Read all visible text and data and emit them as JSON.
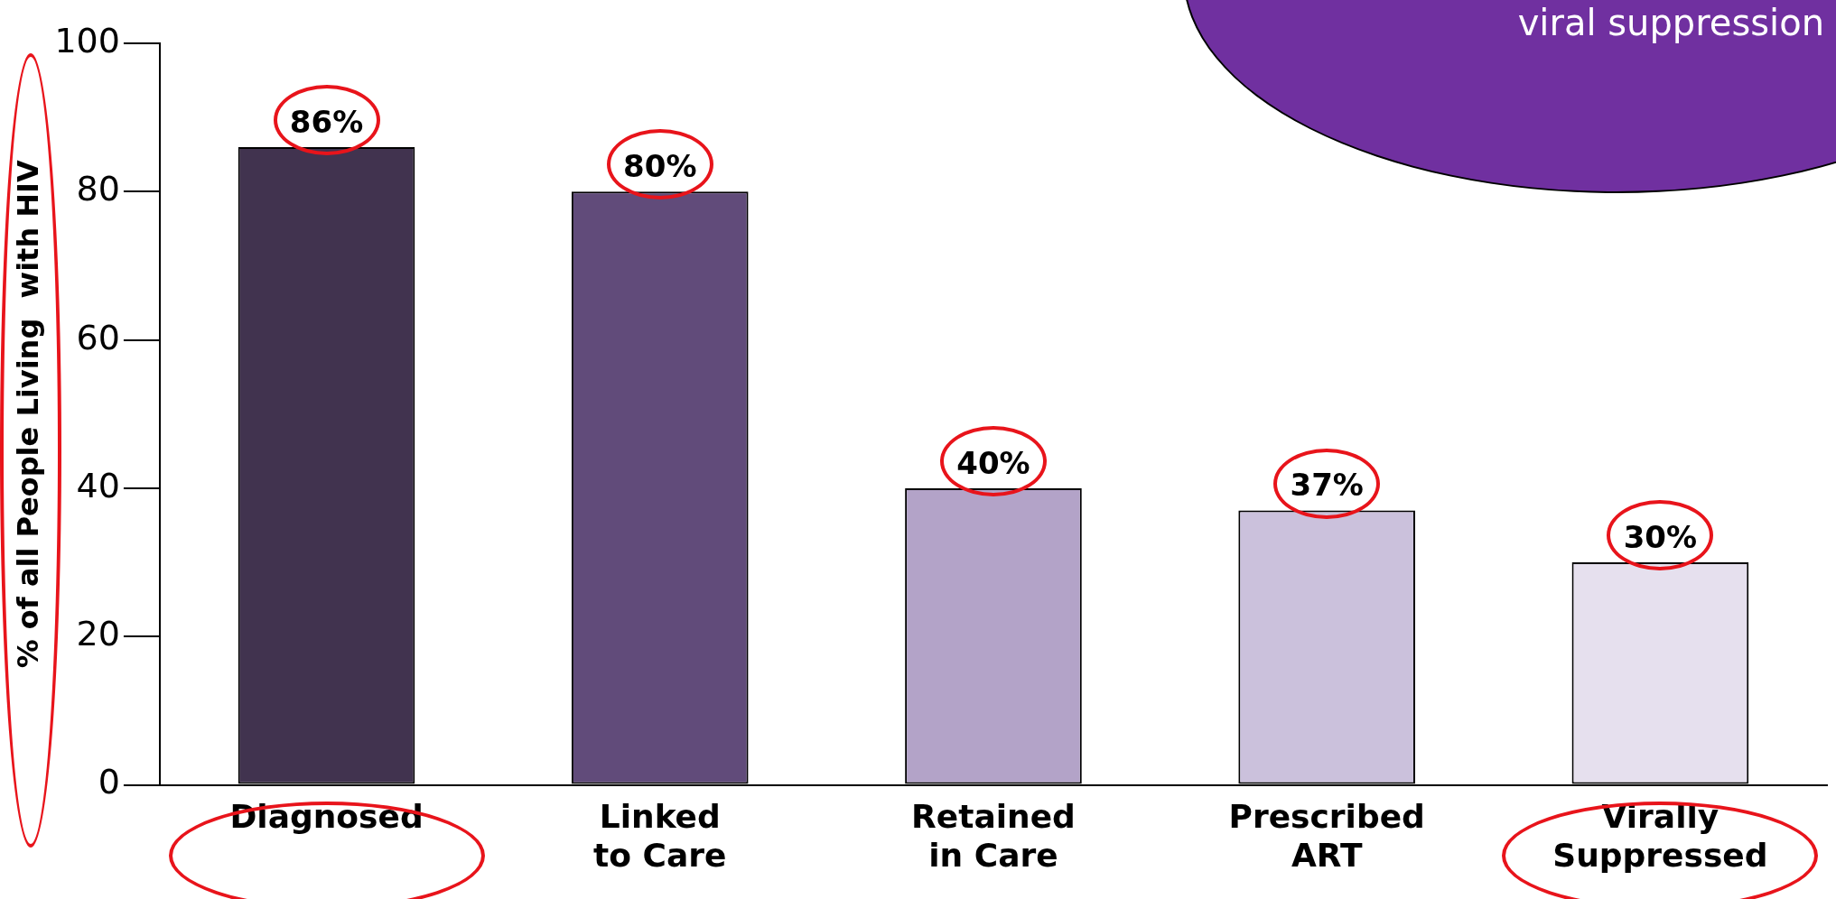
{
  "chart_data": {
    "type": "bar",
    "ylabel": "% of all People Living  with HIV",
    "categories": [
      "Diagnosed",
      "Linked to Care",
      "Retained in Care",
      "Prescribed ART",
      "Virally Suppressed"
    ],
    "values": [
      86,
      80,
      40,
      37,
      30
    ],
    "value_labels": [
      "86%",
      "80%",
      "40%",
      "37%",
      "30%"
    ],
    "colors": [
      "#41334f",
      "#614b7a",
      "#b3a3c8",
      "#cbc1dc",
      "#e6e0ee"
    ],
    "ylim": [
      0,
      100
    ],
    "yticks": [
      0,
      20,
      40,
      60,
      80,
      100
    ],
    "grid": false,
    "legend": false,
    "annotations": [
      "viral suppression"
    ]
  }
}
